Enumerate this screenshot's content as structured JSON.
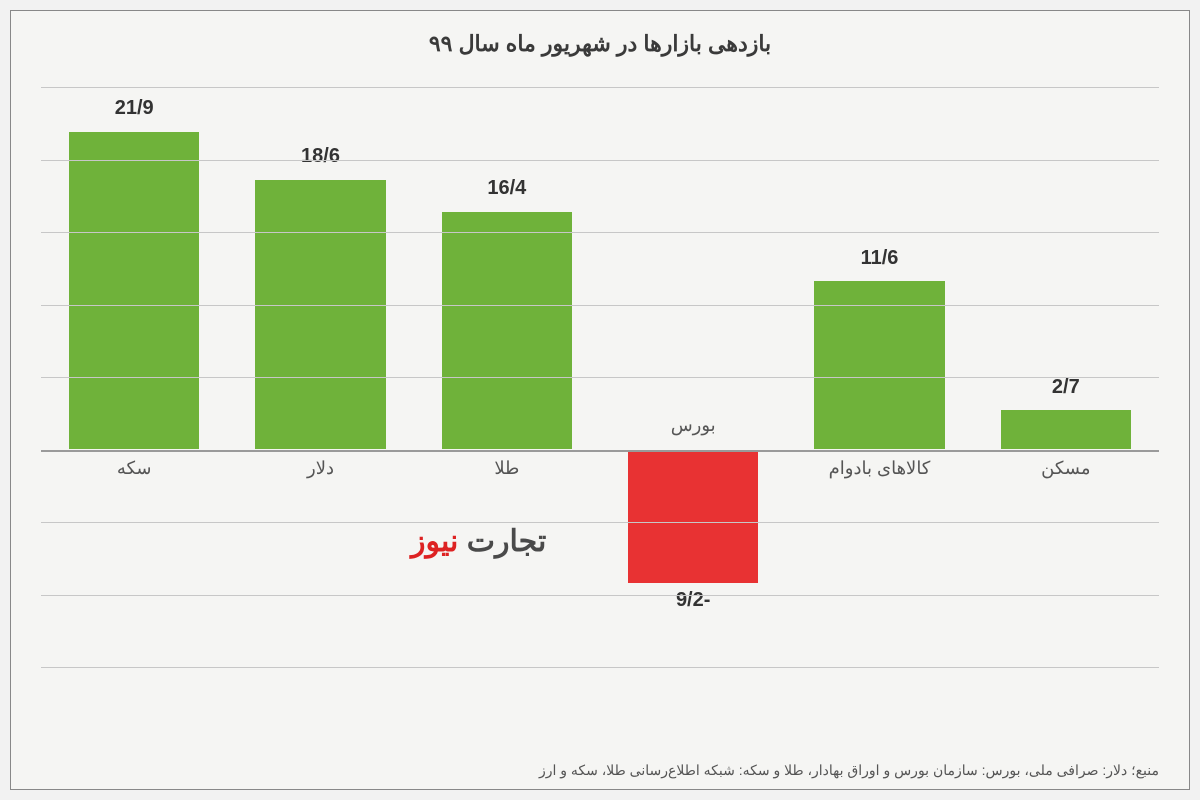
{
  "chart": {
    "type": "bar",
    "title": "بازدهی بازارها در شهریور ماه سال ۹۹",
    "title_fontsize": 22,
    "categories": [
      "سکه",
      "دلار",
      "طلا",
      "بورس",
      "کالاهای بادوام",
      "مسکن"
    ],
    "values": [
      21.9,
      18.6,
      16.4,
      -9.2,
      11.6,
      2.7
    ],
    "value_labels": [
      "21/9",
      "18/6",
      "16/4",
      "-9/2",
      "11/6",
      "2/7"
    ],
    "bar_colors": [
      "#6fb23a",
      "#6fb23a",
      "#6fb23a",
      "#e83233",
      "#6fb23a",
      "#6fb23a"
    ],
    "positive_color": "#6fb23a",
    "negative_color": "#e83233",
    "background_color": "#f5f5f3",
    "grid_color": "#c7c7c7",
    "baseline_color": "#9a9a9a",
    "ymin": -15,
    "ymax": 25,
    "grid_values": [
      25,
      20,
      15,
      10,
      5,
      0,
      -5,
      -10,
      -15
    ],
    "label_fontsize": 18,
    "value_fontsize": 20,
    "bar_width_ratio": 0.7
  },
  "watermark": {
    "part1": "تجارت",
    "part2": "نیوز",
    "color1": "#4a4a4a",
    "color2": "#d22",
    "fontsize": 30
  },
  "source": "منبع؛ دلار: صرافی ملی، بورس: سازمان بورس و اوراق بهادار، طلا و سکه: شبکه اطلاع‌رسانی طلا، سکه و ارز"
}
